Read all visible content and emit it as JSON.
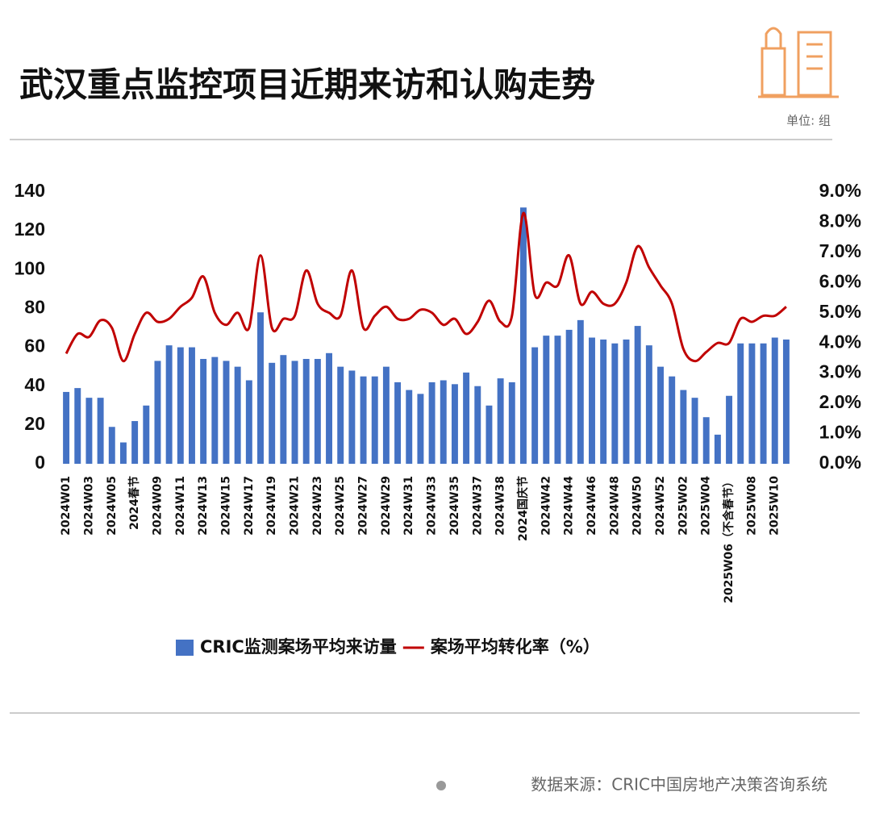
{
  "chart_data": {
    "type": "bar-line",
    "title": "武汉重点监控项目近期来访和认购走势",
    "unit": "单位: 组",
    "source": "数据来源：CRIC中国房地产决策咨询系统",
    "categories": [
      "2024W01",
      null,
      "2024W03",
      null,
      "2024W05",
      null,
      "2024春节",
      null,
      "2024W09",
      null,
      "2024W11",
      null,
      "2024W13",
      null,
      "2024W15",
      null,
      "2024W17",
      null,
      "2024W19",
      null,
      "2024W21",
      null,
      "2024W23",
      null,
      "2024W25",
      null,
      "2024W27",
      null,
      "2024W29",
      null,
      "2024W31",
      null,
      "2024W33",
      null,
      "2024W35",
      null,
      "2024W37",
      null,
      "2024W38",
      null,
      "2024国庆节",
      null,
      "2024W42",
      null,
      "2024W44",
      null,
      "2024W46",
      null,
      "2024W48",
      null,
      "2024W50",
      null,
      "2024W52",
      null,
      "2025W02",
      null,
      "2025W04",
      null,
      "2025W06（不含春节）",
      null,
      "2025W08",
      null,
      "2025W10",
      null
    ],
    "series": [
      {
        "name": "CRIC监测案场平均来访量",
        "type": "bar",
        "color": "#4472c4",
        "values": [
          37,
          39,
          34,
          34,
          19,
          11,
          22,
          30,
          53,
          61,
          60,
          60,
          54,
          55,
          53,
          50,
          43,
          78,
          52,
          56,
          53,
          54,
          54,
          57,
          50,
          48,
          45,
          45,
          50,
          42,
          38,
          36,
          42,
          43,
          41,
          47,
          40,
          30,
          44,
          42,
          132,
          60,
          66,
          66,
          69,
          74,
          65,
          64,
          62,
          64,
          71,
          61,
          50,
          45,
          38,
          34,
          24,
          15,
          35,
          62,
          62,
          62,
          65,
          64
        ]
      },
      {
        "name": "案场平均转化率（%）",
        "type": "line",
        "axis": "y2",
        "color": "#c00000",
        "values": [
          3.65,
          4.3,
          4.2,
          4.75,
          4.5,
          3.4,
          4.3,
          5.0,
          4.7,
          4.8,
          5.2,
          5.5,
          6.2,
          5.0,
          4.6,
          5.0,
          4.5,
          6.9,
          4.5,
          4.8,
          4.9,
          6.4,
          5.3,
          5.0,
          4.9,
          6.4,
          4.5,
          4.9,
          5.2,
          4.8,
          4.8,
          5.1,
          5.0,
          4.6,
          4.8,
          4.3,
          4.7,
          5.4,
          4.7,
          4.9,
          8.3,
          5.6,
          6.0,
          5.9,
          6.9,
          5.3,
          5.7,
          5.3,
          5.3,
          6.0,
          7.2,
          6.5,
          5.9,
          5.3,
          3.8,
          3.4,
          3.7,
          4.0,
          4.0,
          4.8,
          4.7,
          4.9,
          4.9,
          5.2
        ]
      }
    ],
    "ylim": [
      0,
      140
    ],
    "yticks": [
      0,
      20,
      40,
      60,
      80,
      100,
      120,
      140
    ],
    "y2lim": [
      0,
      9
    ],
    "y2ticks": [
      {
        "value": 0,
        "label": "0.0%"
      },
      {
        "value": 1,
        "label": "1.0%"
      },
      {
        "value": 2,
        "label": "2.0%"
      },
      {
        "value": 3,
        "label": "3.0%"
      },
      {
        "value": 4,
        "label": "4.0%"
      },
      {
        "value": 5,
        "label": "5.0%"
      },
      {
        "value": 6,
        "label": "6.0%"
      },
      {
        "value": 7,
        "label": "7.0%"
      },
      {
        "value": 8,
        "label": "8.0%"
      },
      {
        "value": 9,
        "label": "9.0%"
      }
    ],
    "grid": false,
    "legend": "bottom"
  }
}
